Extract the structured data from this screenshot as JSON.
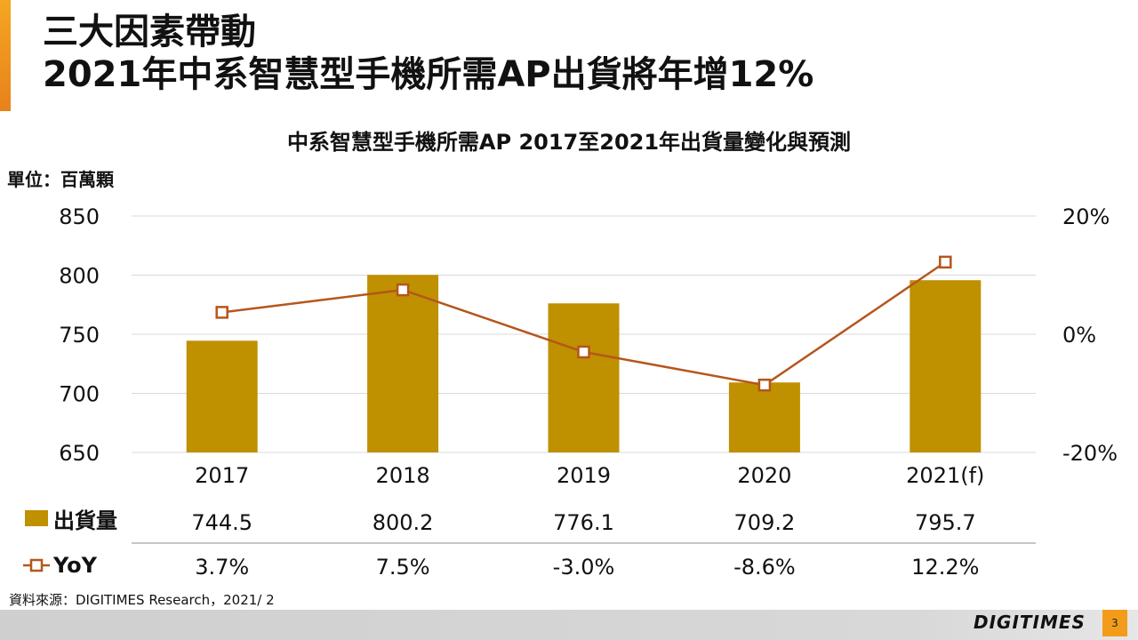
{
  "slide": {
    "title_line1": "三大因素帶動",
    "title_line2": "2021年中系智慧型手機所需AP出貨將年增12%",
    "source": "資料來源：DIGITIMES Research，2021/ 2",
    "logo": "DIGITIMES",
    "page_number": "3"
  },
  "colors": {
    "accent": "#f5a623",
    "bar": "#bf9000",
    "line": "#b5561c",
    "marker_fill": "#ffffff"
  },
  "chart_data": {
    "type": "bar",
    "title": "中系智慧型手機所需AP 2017至2021年出貨量變化與預測",
    "unit_label": "單位：百萬顆",
    "categories": [
      "2017",
      "2018",
      "2019",
      "2020",
      "2021(f)"
    ],
    "ylim": [
      650,
      850
    ],
    "y_ticks": [
      650,
      700,
      750,
      800,
      850
    ],
    "y_tick_labels": [
      "650",
      "700",
      "750",
      "800",
      "850"
    ],
    "y2lim": [
      -0.2,
      0.2
    ],
    "y2_ticks": [
      -0.2,
      0,
      0.2
    ],
    "y2_tick_labels": [
      "-20%",
      "0%",
      "20%"
    ],
    "grid": true,
    "series": [
      {
        "name": "出貨量",
        "type": "bar",
        "axis": "left",
        "values": [
          744.5,
          800.2,
          776.1,
          709.2,
          795.7
        ],
        "labels": [
          "744.5",
          "800.2",
          "776.1",
          "709.2",
          "795.7"
        ]
      },
      {
        "name": "YoY",
        "type": "line",
        "axis": "right",
        "values": [
          0.037,
          0.075,
          -0.03,
          -0.086,
          0.122
        ],
        "labels": [
          "3.7%",
          "7.5%",
          "-3.0%",
          "-8.6%",
          "12.2%"
        ]
      }
    ]
  }
}
